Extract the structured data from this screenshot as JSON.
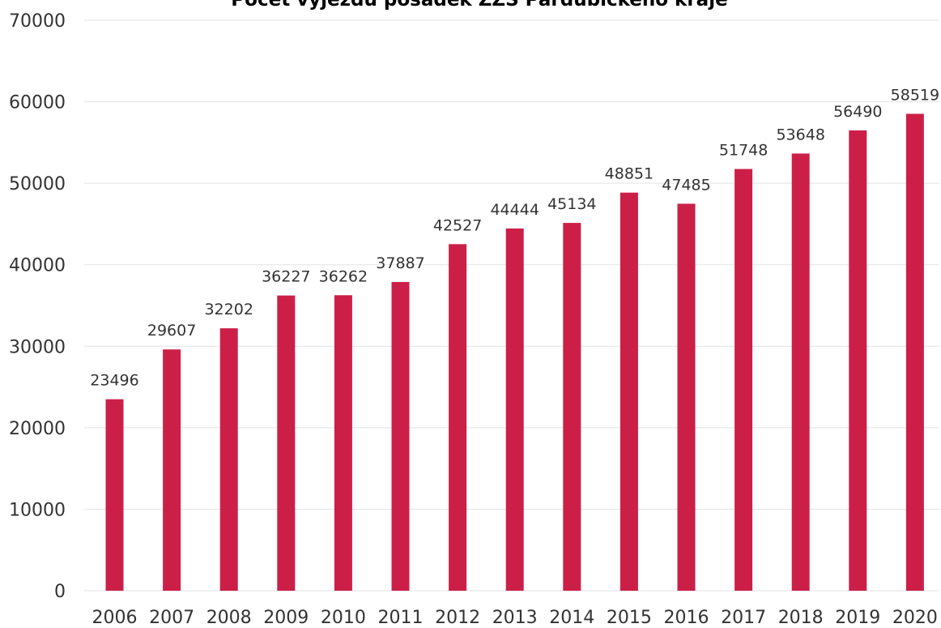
{
  "chart_data": {
    "type": "bar",
    "title": "Počet výjezdů posádek ZZS Pardubického kraje",
    "xlabel": "",
    "ylabel": "",
    "categories": [
      "2006",
      "2007",
      "2008",
      "2009",
      "2010",
      "2011",
      "2012",
      "2013",
      "2014",
      "2015",
      "2016",
      "2017",
      "2018",
      "2019",
      "2020"
    ],
    "values": [
      23496,
      29607,
      32202,
      36227,
      36262,
      37887,
      42527,
      44444,
      45134,
      48851,
      47485,
      51748,
      53648,
      56490,
      58519
    ],
    "data_labels": [
      "23496",
      "29607",
      "32202",
      "36227",
      "36262",
      "37887",
      "42527",
      "44444",
      "45134",
      "48851",
      "47485",
      "51748",
      "53648",
      "56490",
      "58519"
    ],
    "ylim": [
      0,
      70000
    ],
    "yticks": [
      0,
      10000,
      20000,
      30000,
      40000,
      50000,
      60000,
      70000
    ],
    "ytick_labels": [
      "0",
      "10000",
      "20000",
      "30000",
      "40000",
      "50000",
      "60000",
      "70000"
    ],
    "grid": true,
    "legend": "none",
    "bar_color": "#cc1f48"
  }
}
